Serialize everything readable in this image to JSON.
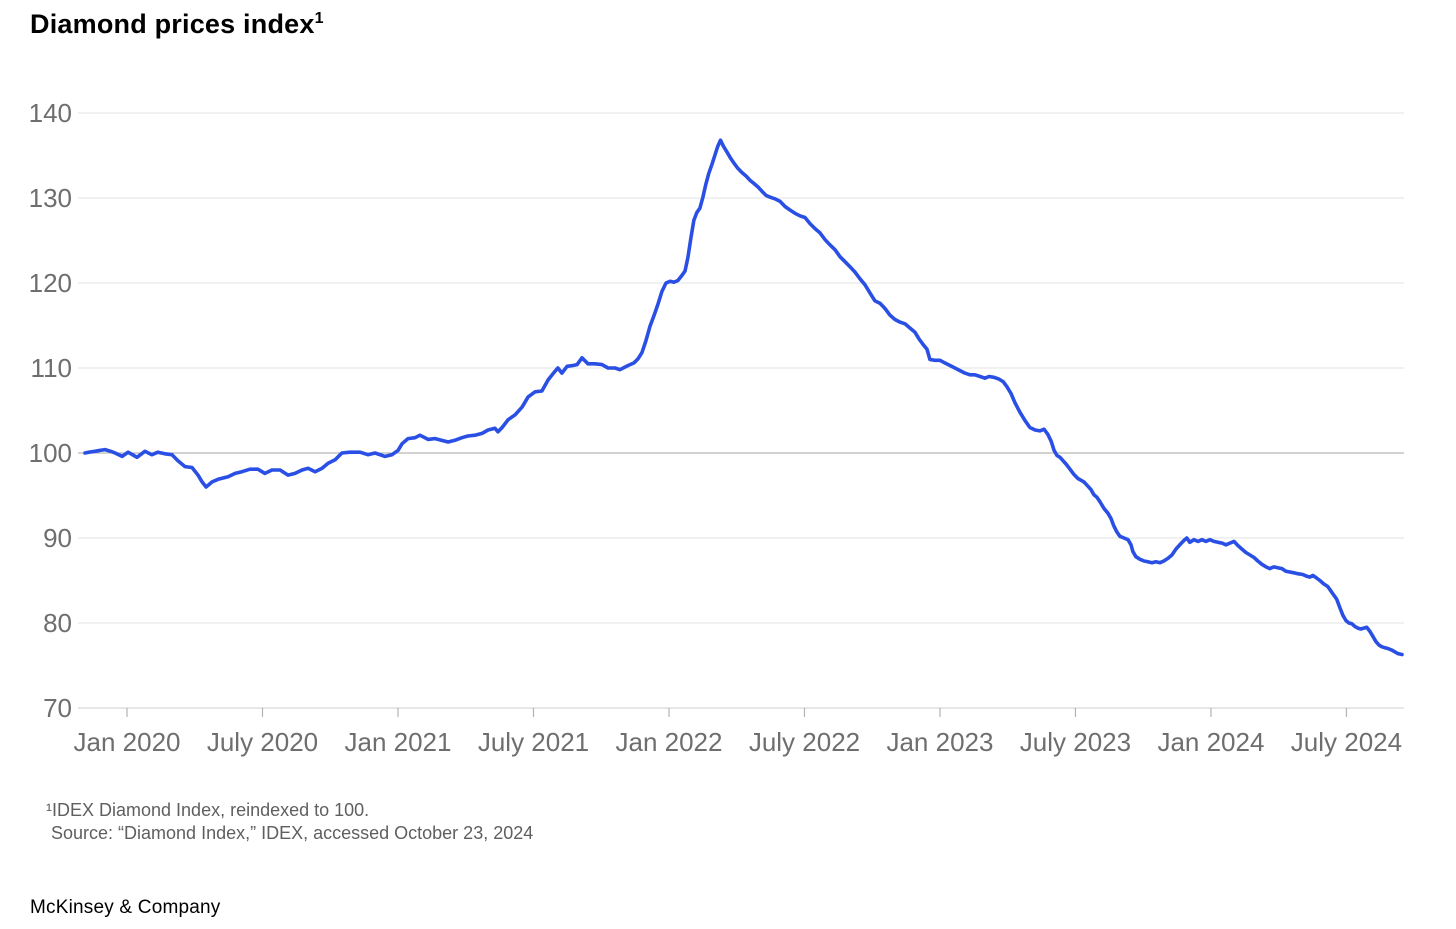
{
  "title": {
    "text": "Diamond prices index",
    "superscript": "1"
  },
  "footnote": {
    "line1": "¹IDEX Diamond Index, reindexed to 100.",
    "line2": "Source: “Diamond Index,” IDEX, accessed October 23, 2024"
  },
  "brand": "McKinsey & Company",
  "colors": {
    "line": "#2a4fe4",
    "grid": "#e3e3e3",
    "baseline_grid": "#a6a6a6",
    "axis_line": "#cfcfcf",
    "tick": "#b3b3b3",
    "axis_label": "#6e6e6e"
  },
  "chart_data": {
    "type": "line",
    "title": "Diamond prices index",
    "xlabel": "",
    "ylabel": "",
    "xlim": [
      2019.845,
      2024.705
    ],
    "ylim": [
      70,
      140
    ],
    "grid": "horizontal",
    "baseline_value": 100,
    "legend": "none",
    "y_ticks": [
      70,
      80,
      90,
      100,
      110,
      120,
      130,
      140
    ],
    "x_ticks": [
      {
        "t": 2020.0,
        "label": "Jan 2020"
      },
      {
        "t": 2020.5,
        "label": "July 2020"
      },
      {
        "t": 2021.0,
        "label": "Jan 2021"
      },
      {
        "t": 2021.5,
        "label": "July 2021"
      },
      {
        "t": 2022.0,
        "label": "Jan 2022"
      },
      {
        "t": 2022.5,
        "label": "July 2022"
      },
      {
        "t": 2023.0,
        "label": "Jan 2023"
      },
      {
        "t": 2023.5,
        "label": "July 2023"
      },
      {
        "t": 2024.0,
        "label": "Jan 2024"
      },
      {
        "t": 2024.5,
        "label": "July 2024"
      }
    ],
    "series": [
      {
        "name": "IDEX Diamond Index (reindexed to 100)",
        "points": [
          [
            2019.845,
            100.0
          ],
          [
            2019.86,
            100.1
          ],
          [
            2019.882,
            100.2
          ],
          [
            2019.9,
            100.3
          ],
          [
            2019.919,
            100.4
          ],
          [
            2019.94,
            100.2
          ],
          [
            2019.956,
            100.0
          ],
          [
            2019.982,
            99.6
          ],
          [
            2020.004,
            100.1
          ],
          [
            2020.037,
            99.5
          ],
          [
            2020.066,
            100.2
          ],
          [
            2020.092,
            99.8
          ],
          [
            2020.114,
            100.1
          ],
          [
            2020.14,
            99.9
          ],
          [
            2020.166,
            99.8
          ],
          [
            2020.188,
            99.1
          ],
          [
            2020.214,
            98.4
          ],
          [
            2020.24,
            98.3
          ],
          [
            2020.262,
            97.4
          ],
          [
            2020.277,
            96.6
          ],
          [
            2020.292,
            96.0
          ],
          [
            2020.314,
            96.6
          ],
          [
            2020.336,
            96.9
          ],
          [
            2020.373,
            97.2
          ],
          [
            2020.399,
            97.6
          ],
          [
            2020.424,
            97.8
          ],
          [
            2020.454,
            98.1
          ],
          [
            2020.483,
            98.1
          ],
          [
            2020.509,
            97.6
          ],
          [
            2020.535,
            98.0
          ],
          [
            2020.565,
            98.0
          ],
          [
            2020.594,
            97.4
          ],
          [
            2020.62,
            97.6
          ],
          [
            2020.646,
            98.0
          ],
          [
            2020.668,
            98.2
          ],
          [
            2020.694,
            97.8
          ],
          [
            2020.72,
            98.2
          ],
          [
            2020.742,
            98.8
          ],
          [
            2020.768,
            99.2
          ],
          [
            2020.793,
            100.0
          ],
          [
            2020.823,
            100.1
          ],
          [
            2020.86,
            100.1
          ],
          [
            2020.889,
            99.8
          ],
          [
            2020.915,
            100.0
          ],
          [
            2020.952,
            99.6
          ],
          [
            2020.978,
            99.8
          ],
          [
            2021.0,
            100.3
          ],
          [
            2021.015,
            101.1
          ],
          [
            2021.037,
            101.7
          ],
          [
            2021.063,
            101.8
          ],
          [
            2021.081,
            102.1
          ],
          [
            2021.111,
            101.6
          ],
          [
            2021.137,
            101.7
          ],
          [
            2021.185,
            101.3
          ],
          [
            2021.21,
            101.5
          ],
          [
            2021.236,
            101.8
          ],
          [
            2021.258,
            102.0
          ],
          [
            2021.284,
            102.1
          ],
          [
            2021.31,
            102.3
          ],
          [
            2021.332,
            102.7
          ],
          [
            2021.358,
            102.9
          ],
          [
            2021.369,
            102.5
          ],
          [
            2021.384,
            103.0
          ],
          [
            2021.406,
            103.9
          ],
          [
            2021.432,
            104.5
          ],
          [
            2021.458,
            105.4
          ],
          [
            2021.48,
            106.6
          ],
          [
            2021.506,
            107.2
          ],
          [
            2021.531,
            107.3
          ],
          [
            2021.554,
            108.6
          ],
          [
            2021.579,
            109.6
          ],
          [
            2021.59,
            110.0
          ],
          [
            2021.605,
            109.4
          ],
          [
            2021.624,
            110.2
          ],
          [
            2021.646,
            110.3
          ],
          [
            2021.661,
            110.4
          ],
          [
            2021.679,
            111.2
          ],
          [
            2021.701,
            110.5
          ],
          [
            2021.727,
            110.5
          ],
          [
            2021.753,
            110.4
          ],
          [
            2021.775,
            110.0
          ],
          [
            2021.801,
            110.0
          ],
          [
            2021.819,
            109.8
          ],
          [
            2021.849,
            110.3
          ],
          [
            2021.871,
            110.6
          ],
          [
            2021.886,
            111.1
          ],
          [
            2021.9,
            111.8
          ],
          [
            2021.915,
            113.2
          ],
          [
            2021.93,
            114.9
          ],
          [
            2021.945,
            116.2
          ],
          [
            2021.959,
            117.5
          ],
          [
            2021.974,
            119.0
          ],
          [
            2021.989,
            120.0
          ],
          [
            2022.004,
            120.2
          ],
          [
            2022.018,
            120.1
          ],
          [
            2022.033,
            120.3
          ],
          [
            2022.048,
            120.9
          ],
          [
            2022.059,
            121.4
          ],
          [
            2022.07,
            123.0
          ],
          [
            2022.081,
            125.3
          ],
          [
            2022.092,
            127.4
          ],
          [
            2022.103,
            128.3
          ],
          [
            2022.114,
            128.8
          ],
          [
            2022.125,
            130.1
          ],
          [
            2022.136,
            131.6
          ],
          [
            2022.147,
            132.9
          ],
          [
            2022.158,
            133.9
          ],
          [
            2022.169,
            135.0
          ],
          [
            2022.18,
            136.1
          ],
          [
            2022.19,
            136.8
          ],
          [
            2022.201,
            136.1
          ],
          [
            2022.214,
            135.4
          ],
          [
            2022.225,
            134.8
          ],
          [
            2022.24,
            134.1
          ],
          [
            2022.254,
            133.5
          ],
          [
            2022.269,
            133.0
          ],
          [
            2022.284,
            132.6
          ],
          [
            2022.299,
            132.1
          ],
          [
            2022.314,
            131.7
          ],
          [
            2022.328,
            131.3
          ],
          [
            2022.343,
            130.8
          ],
          [
            2022.358,
            130.3
          ],
          [
            2022.373,
            130.1
          ],
          [
            2022.391,
            129.9
          ],
          [
            2022.41,
            129.6
          ],
          [
            2022.428,
            129.0
          ],
          [
            2022.446,
            128.6
          ],
          [
            2022.465,
            128.2
          ],
          [
            2022.483,
            127.9
          ],
          [
            2022.502,
            127.7
          ],
          [
            2022.52,
            127.0
          ],
          [
            2022.539,
            126.4
          ],
          [
            2022.557,
            125.9
          ],
          [
            2022.576,
            125.1
          ],
          [
            2022.594,
            124.5
          ],
          [
            2022.613,
            123.9
          ],
          [
            2022.631,
            123.1
          ],
          [
            2022.65,
            122.5
          ],
          [
            2022.668,
            121.9
          ],
          [
            2022.686,
            121.3
          ],
          [
            2022.705,
            120.5
          ],
          [
            2022.723,
            119.8
          ],
          [
            2022.742,
            118.8
          ],
          [
            2022.76,
            117.9
          ],
          [
            2022.779,
            117.6
          ],
          [
            2022.797,
            117.0
          ],
          [
            2022.816,
            116.2
          ],
          [
            2022.834,
            115.7
          ],
          [
            2022.852,
            115.4
          ],
          [
            2022.871,
            115.2
          ],
          [
            2022.889,
            114.7
          ],
          [
            2022.908,
            114.2
          ],
          [
            2022.923,
            113.4
          ],
          [
            2022.937,
            112.8
          ],
          [
            2022.952,
            112.2
          ],
          [
            2022.963,
            111.0
          ],
          [
            2022.982,
            110.9
          ],
          [
            2023.0,
            110.9
          ],
          [
            2023.018,
            110.6
          ],
          [
            2023.037,
            110.3
          ],
          [
            2023.055,
            110.0
          ],
          [
            2023.074,
            109.7
          ],
          [
            2023.092,
            109.4
          ],
          [
            2023.111,
            109.2
          ],
          [
            2023.129,
            109.2
          ],
          [
            2023.148,
            109.0
          ],
          [
            2023.166,
            108.8
          ],
          [
            2023.181,
            109.0
          ],
          [
            2023.199,
            108.9
          ],
          [
            2023.218,
            108.7
          ],
          [
            2023.233,
            108.4
          ],
          [
            2023.247,
            107.8
          ],
          [
            2023.262,
            107.0
          ],
          [
            2023.277,
            105.9
          ],
          [
            2023.295,
            104.8
          ],
          [
            2023.314,
            103.8
          ],
          [
            2023.332,
            103.0
          ],
          [
            2023.351,
            102.7
          ],
          [
            2023.369,
            102.6
          ],
          [
            2023.384,
            102.8
          ],
          [
            2023.398,
            102.2
          ],
          [
            2023.41,
            101.4
          ],
          [
            2023.421,
            100.3
          ],
          [
            2023.432,
            99.7
          ],
          [
            2023.443,
            99.5
          ],
          [
            2023.454,
            99.1
          ],
          [
            2023.465,
            98.7
          ],
          [
            2023.48,
            98.1
          ],
          [
            2023.494,
            97.5
          ],
          [
            2023.509,
            97.0
          ],
          [
            2023.52,
            96.8
          ],
          [
            2023.531,
            96.6
          ],
          [
            2023.546,
            96.1
          ],
          [
            2023.557,
            95.7
          ],
          [
            2023.568,
            95.1
          ],
          [
            2023.579,
            94.8
          ],
          [
            2023.59,
            94.3
          ],
          [
            2023.605,
            93.5
          ],
          [
            2023.62,
            92.9
          ],
          [
            2023.631,
            92.3
          ],
          [
            2023.642,
            91.4
          ],
          [
            2023.653,
            90.7
          ],
          [
            2023.664,
            90.2
          ],
          [
            2023.679,
            90.0
          ],
          [
            2023.694,
            89.8
          ],
          [
            2023.705,
            89.2
          ],
          [
            2023.712,
            88.4
          ],
          [
            2023.723,
            87.8
          ],
          [
            2023.738,
            87.5
          ],
          [
            2023.753,
            87.3
          ],
          [
            2023.767,
            87.2
          ],
          [
            2023.782,
            87.1
          ],
          [
            2023.797,
            87.2
          ],
          [
            2023.812,
            87.1
          ],
          [
            2023.826,
            87.3
          ],
          [
            2023.841,
            87.6
          ],
          [
            2023.856,
            88.0
          ],
          [
            2023.871,
            88.7
          ],
          [
            2023.885,
            89.2
          ],
          [
            2023.9,
            89.7
          ],
          [
            2023.911,
            90.0
          ],
          [
            2023.922,
            89.5
          ],
          [
            2023.937,
            89.8
          ],
          [
            2023.952,
            89.6
          ],
          [
            2023.967,
            89.8
          ],
          [
            2023.981,
            89.6
          ],
          [
            2023.996,
            89.8
          ],
          [
            2024.011,
            89.6
          ],
          [
            2024.026,
            89.5
          ],
          [
            2024.041,
            89.4
          ],
          [
            2024.055,
            89.2
          ],
          [
            2024.07,
            89.4
          ],
          [
            2024.085,
            89.6
          ],
          [
            2024.1,
            89.1
          ],
          [
            2024.114,
            88.7
          ],
          [
            2024.129,
            88.3
          ],
          [
            2024.144,
            88.0
          ],
          [
            2024.159,
            87.7
          ],
          [
            2024.173,
            87.3
          ],
          [
            2024.188,
            86.9
          ],
          [
            2024.203,
            86.6
          ],
          [
            2024.217,
            86.4
          ],
          [
            2024.232,
            86.6
          ],
          [
            2024.247,
            86.5
          ],
          [
            2024.262,
            86.4
          ],
          [
            2024.276,
            86.1
          ],
          [
            2024.291,
            86.0
          ],
          [
            2024.306,
            85.9
          ],
          [
            2024.32,
            85.8
          ],
          [
            2024.339,
            85.7
          ],
          [
            2024.354,
            85.5
          ],
          [
            2024.365,
            85.4
          ],
          [
            2024.376,
            85.6
          ],
          [
            2024.39,
            85.3
          ],
          [
            2024.402,
            85.0
          ],
          [
            2024.416,
            84.6
          ],
          [
            2024.431,
            84.3
          ],
          [
            2024.442,
            83.8
          ],
          [
            2024.453,
            83.3
          ],
          [
            2024.464,
            82.8
          ],
          [
            2024.476,
            81.8
          ],
          [
            2024.487,
            80.9
          ],
          [
            2024.498,
            80.3
          ],
          [
            2024.509,
            80.0
          ],
          [
            2024.52,
            79.9
          ],
          [
            2024.531,
            79.6
          ],
          [
            2024.542,
            79.4
          ],
          [
            2024.553,
            79.3
          ],
          [
            2024.564,
            79.4
          ],
          [
            2024.575,
            79.5
          ],
          [
            2024.587,
            79.0
          ],
          [
            2024.598,
            78.4
          ],
          [
            2024.609,
            77.8
          ],
          [
            2024.62,
            77.4
          ],
          [
            2024.631,
            77.2
          ],
          [
            2024.642,
            77.1
          ],
          [
            2024.653,
            77.0
          ],
          [
            2024.668,
            76.8
          ],
          [
            2024.679,
            76.6
          ],
          [
            2024.69,
            76.4
          ],
          [
            2024.705,
            76.3
          ]
        ]
      }
    ]
  }
}
